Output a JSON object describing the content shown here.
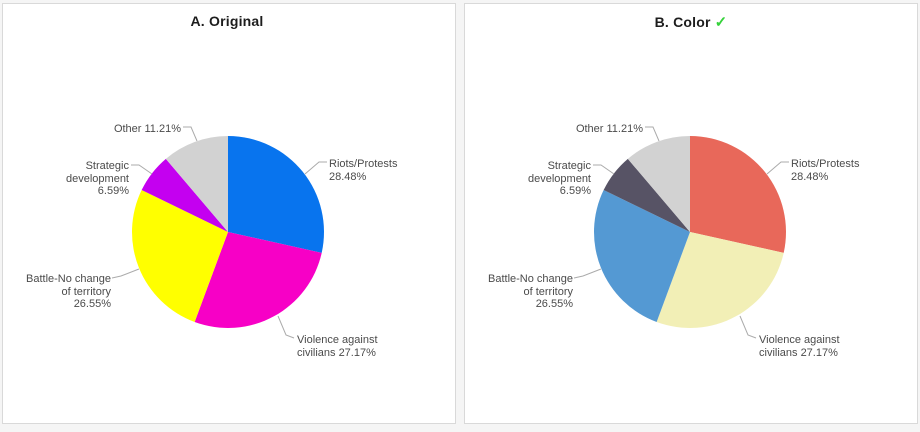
{
  "background_color": "#f5f5f5",
  "panel_border_color": "#d9d9d9",
  "leader_line_color": "#ababab",
  "label_text_color": "#4b4b4b",
  "check_color": "#35d23a",
  "panels": [
    {
      "title": "A. Original",
      "check_mark": ""
    },
    {
      "title": "B. Color",
      "check_mark": "✓"
    }
  ],
  "chart_data": [
    {
      "type": "pie",
      "title": "A. Original",
      "start_angle": "top",
      "direction": "clockwise",
      "legend": "none",
      "slices": [
        {
          "label": "Riots/Protests",
          "value": 28.48,
          "color": "#0874ee",
          "display": [
            "Riots/Protests",
            "28.48%"
          ]
        },
        {
          "label": "Violence against civilians",
          "value": 27.17,
          "color": "#f700c6",
          "display": [
            "Violence against",
            "civilians 27.17%"
          ]
        },
        {
          "label": "Battle-No change of territory",
          "value": 26.55,
          "color": "#ffff00",
          "display": [
            "Battle-No change",
            "of territory",
            "26.55%"
          ]
        },
        {
          "label": "Strategic development",
          "value": 6.59,
          "color": "#c400f0",
          "display": [
            "Strategic",
            "development",
            "6.59%"
          ]
        },
        {
          "label": "Other",
          "value": 11.21,
          "color": "#d2d2d2",
          "display": [
            "Other 11.21%"
          ]
        }
      ]
    },
    {
      "type": "pie",
      "title": "B. Color",
      "start_angle": "top",
      "direction": "clockwise",
      "legend": "none",
      "slices": [
        {
          "label": "Riots/Protests",
          "value": 28.48,
          "color": "#e8685a",
          "display": [
            "Riots/Protests",
            "28.48%"
          ]
        },
        {
          "label": "Violence against civilians",
          "value": 27.17,
          "color": "#f2efb6",
          "display": [
            "Violence against",
            "civilians 27.17%"
          ]
        },
        {
          "label": "Battle-No change of territory",
          "value": 26.55,
          "color": "#5499d3",
          "display": [
            "Battle-No change",
            "of territory",
            "26.55%"
          ]
        },
        {
          "label": "Strategic development",
          "value": 6.59,
          "color": "#575365",
          "display": [
            "Strategic",
            "development",
            "6.59%"
          ]
        },
        {
          "label": "Other",
          "value": 11.21,
          "color": "#d2d2d2",
          "display": [
            "Other 11.21%"
          ]
        }
      ]
    }
  ]
}
